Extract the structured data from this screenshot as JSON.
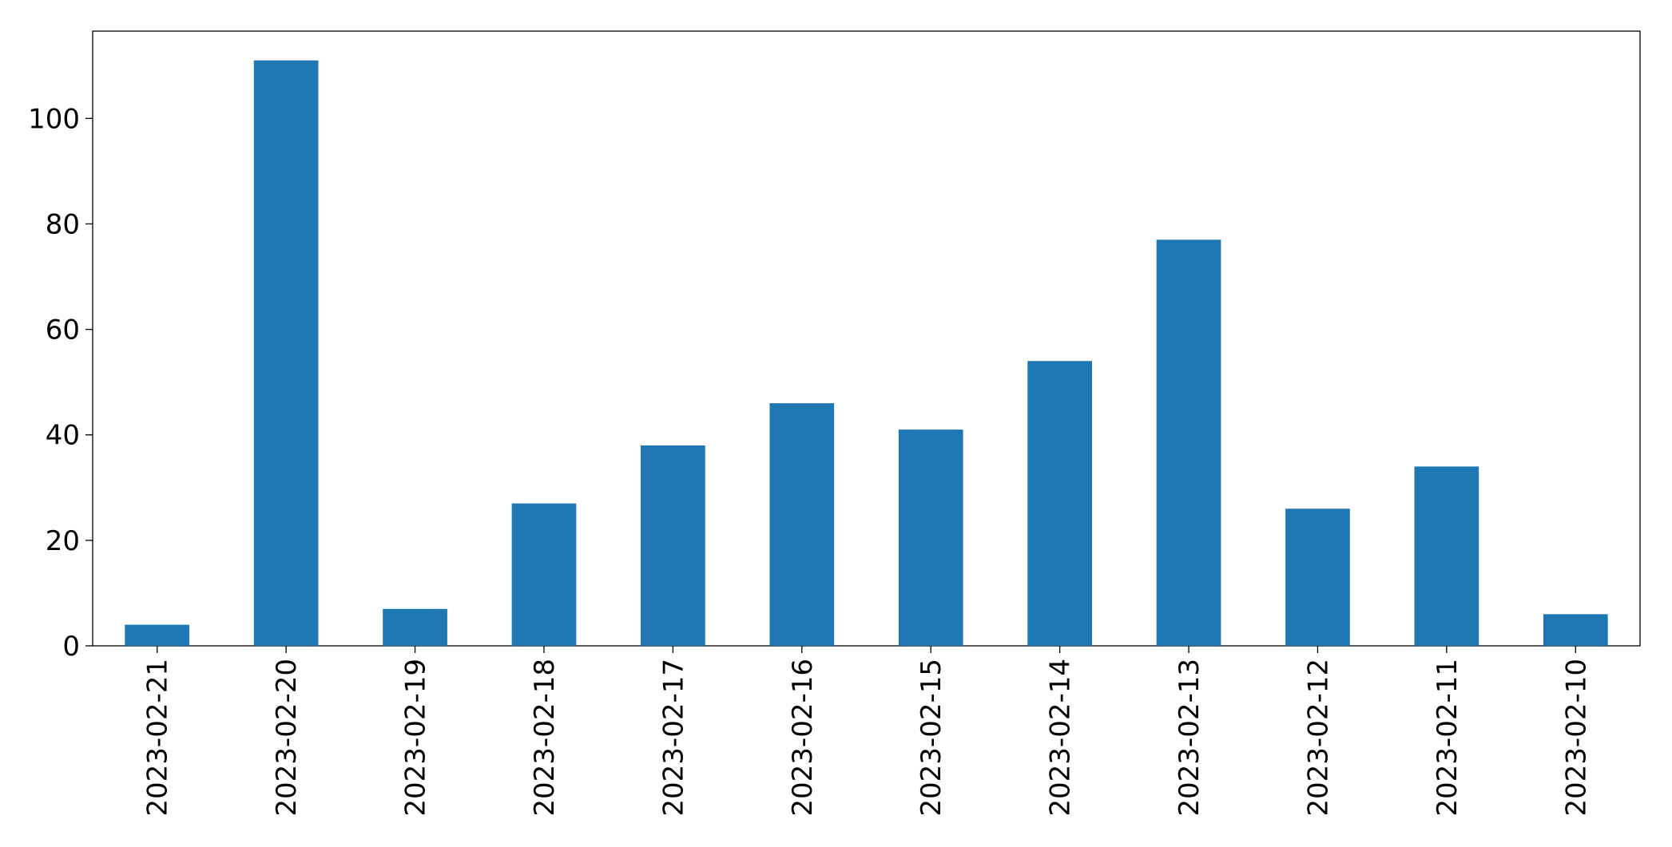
{
  "chart_data": {
    "type": "bar",
    "categories": [
      "2023-02-21",
      "2023-02-20",
      "2023-02-19",
      "2023-02-18",
      "2023-02-17",
      "2023-02-16",
      "2023-02-15",
      "2023-02-14",
      "2023-02-13",
      "2023-02-12",
      "2023-02-11",
      "2023-02-10"
    ],
    "values": [
      4,
      111,
      7,
      27,
      38,
      46,
      41,
      54,
      77,
      26,
      34,
      6
    ],
    "color": "#1f77b4",
    "ylim": [
      0,
      116.55
    ],
    "yticks": [
      0,
      20,
      40,
      60,
      80,
      100
    ],
    "grid": false
  }
}
